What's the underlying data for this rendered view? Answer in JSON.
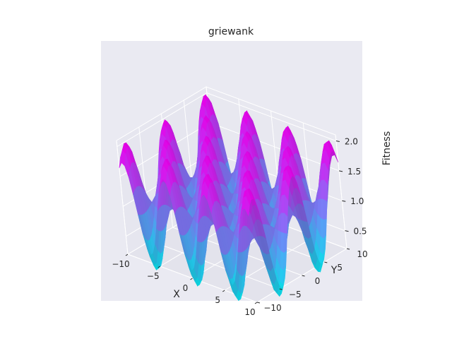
{
  "chart_data": {
    "type": "surface",
    "title": "griewank",
    "xlabel": "X",
    "ylabel": "Y",
    "zlabel": "Fitness",
    "x_range": [
      -10,
      10
    ],
    "y_range": [
      -10,
      10
    ],
    "z_range": [
      0.2,
      2.1
    ],
    "x_ticks": [
      "−10",
      "−5",
      "0",
      "5",
      "10"
    ],
    "y_ticks": [
      "−10",
      "−5",
      "0",
      "5",
      "10"
    ],
    "z_ticks": [
      "0.5",
      "1.0",
      "1.5",
      "2.0"
    ],
    "colormap": "cool",
    "colormap_low": "#00ffff",
    "colormap_high": "#ff00ff",
    "pane_color": "#eaeaf2",
    "function": "griewank"
  }
}
